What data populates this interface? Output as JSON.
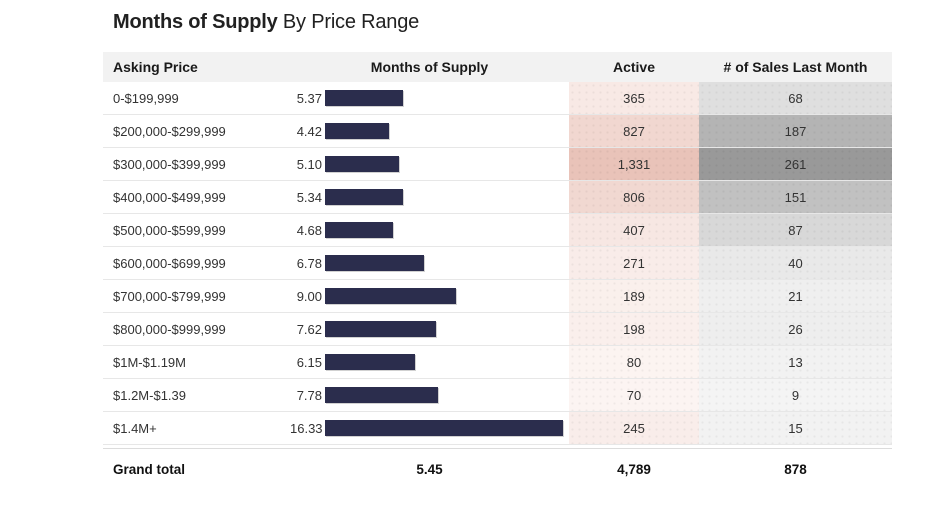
{
  "title": {
    "bold": "Months of Supply",
    "regular": " By Price Range"
  },
  "colors": {
    "bar": "#2b2d4d",
    "header_bg": "#f2f2f2",
    "active_heat_min": "#fdf7f5",
    "active_heat_max": "#e9c3b9",
    "sales_heat_min": "#f7f7f7",
    "sales_heat_max": "#999999",
    "row_border": "#e7e7e7"
  },
  "chart_data": {
    "type": "table",
    "title": "Months of Supply By Price Range",
    "columns": [
      "Asking Price",
      "Months of Supply",
      "Active",
      "# of Sales Last Month"
    ],
    "bar_axis_max": 16.33,
    "active_heat_scale_max": 1331,
    "sales_heat_scale_max": 261,
    "rows": [
      {
        "asking_price": "0-$199,999",
        "mos": "5.37",
        "mos_value": 5.37,
        "active": "365",
        "active_value": 365,
        "sales": "68",
        "sales_value": 68
      },
      {
        "asking_price": "$200,000-$299,999",
        "mos": "4.42",
        "mos_value": 4.42,
        "active": "827",
        "active_value": 827,
        "sales": "187",
        "sales_value": 187
      },
      {
        "asking_price": "$300,000-$399,999",
        "mos": "5.10",
        "mos_value": 5.1,
        "active": "1,331",
        "active_value": 1331,
        "sales": "261",
        "sales_value": 261
      },
      {
        "asking_price": "$400,000-$499,999",
        "mos": "5.34",
        "mos_value": 5.34,
        "active": "806",
        "active_value": 806,
        "sales": "151",
        "sales_value": 151
      },
      {
        "asking_price": "$500,000-$599,999",
        "mos": "4.68",
        "mos_value": 4.68,
        "active": "407",
        "active_value": 407,
        "sales": "87",
        "sales_value": 87
      },
      {
        "asking_price": "$600,000-$699,999",
        "mos": "6.78",
        "mos_value": 6.78,
        "active": "271",
        "active_value": 271,
        "sales": "40",
        "sales_value": 40
      },
      {
        "asking_price": "$700,000-$799,999",
        "mos": "9.00",
        "mos_value": 9.0,
        "active": "189",
        "active_value": 189,
        "sales": "21",
        "sales_value": 21
      },
      {
        "asking_price": "$800,000-$999,999",
        "mos": "7.62",
        "mos_value": 7.62,
        "active": "198",
        "active_value": 198,
        "sales": "26",
        "sales_value": 26
      },
      {
        "asking_price": "$1M-$1.19M",
        "mos": "6.15",
        "mos_value": 6.15,
        "active": "80",
        "active_value": 80,
        "sales": "13",
        "sales_value": 13
      },
      {
        "asking_price": "$1.2M-$1.39",
        "mos": "7.78",
        "mos_value": 7.78,
        "active": "70",
        "active_value": 70,
        "sales": "9",
        "sales_value": 9
      },
      {
        "asking_price": "$1.4M+",
        "mos": "16.33",
        "mos_value": 16.33,
        "active": "245",
        "active_value": 245,
        "sales": "15",
        "sales_value": 15
      }
    ],
    "grand_total": {
      "label": "Grand total",
      "mos": "5.45",
      "active": "4,789",
      "sales": "878"
    }
  }
}
